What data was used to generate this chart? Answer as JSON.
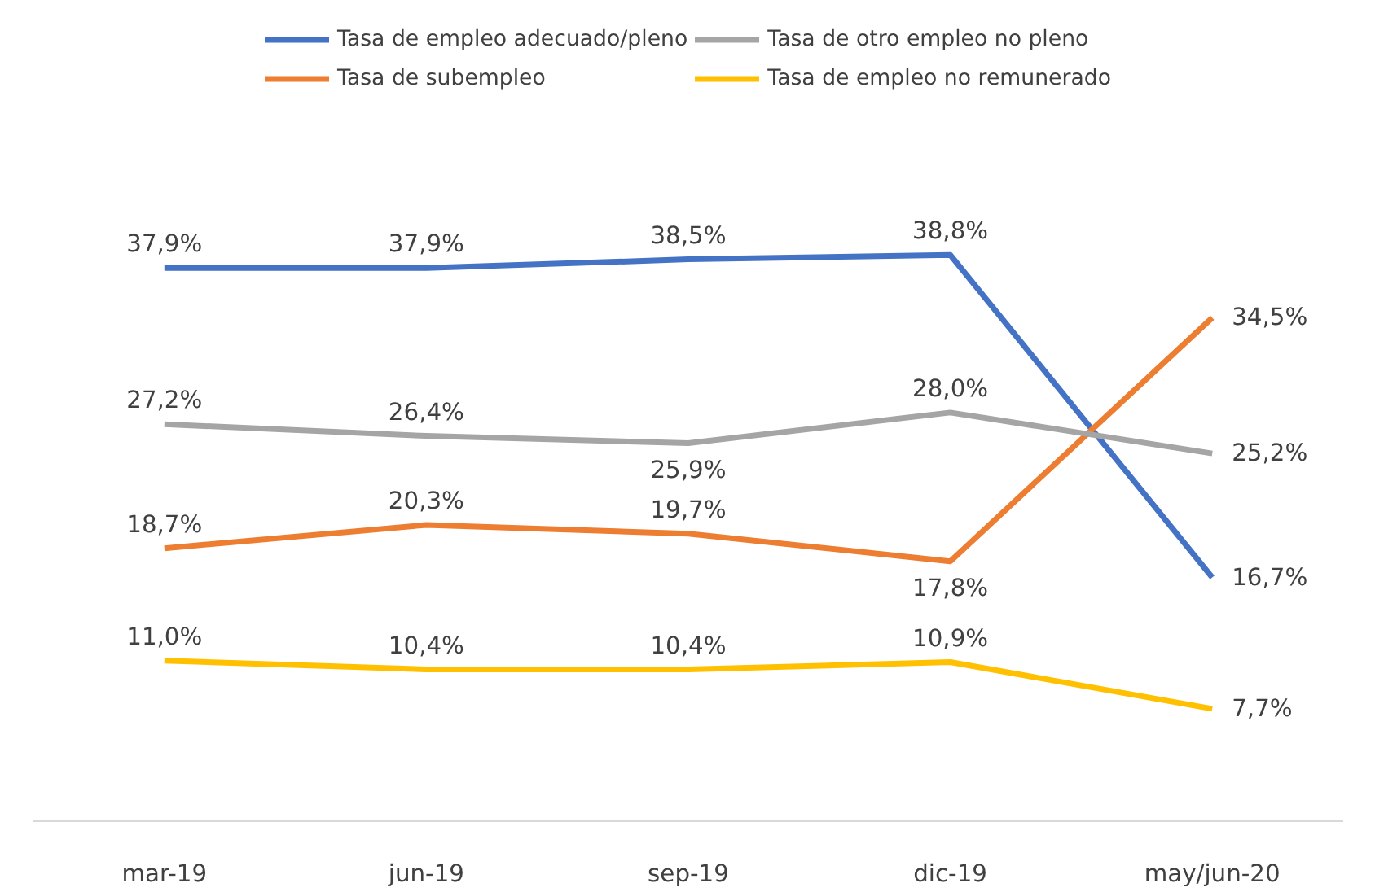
{
  "chart_data": {
    "type": "line",
    "categories": [
      "mar-19",
      "jun-19",
      "sep-19",
      "dic-19",
      "may/jun-20"
    ],
    "series": [
      {
        "name": "Tasa de empleo adecuado/pleno",
        "color": "#4472c4",
        "values": [
          37.9,
          37.9,
          38.5,
          38.8,
          16.7
        ],
        "value_labels": [
          "37,9%",
          "37,9%",
          "38,5%",
          "38,8%",
          "16,7%"
        ]
      },
      {
        "name": "Tasa de subempleo",
        "color": "#ed7d31",
        "values": [
          18.7,
          20.3,
          19.7,
          17.8,
          34.5
        ],
        "value_labels": [
          "18,7%",
          "20,3%",
          "19,7%",
          "17,8%",
          "34,5%"
        ]
      },
      {
        "name": "Tasa de otro empleo no pleno",
        "color": "#a5a5a5",
        "values": [
          27.2,
          26.4,
          25.9,
          28.0,
          25.2
        ],
        "value_labels": [
          "27,2%",
          "26,4%",
          "25,9%",
          "28,0%",
          "25,2%"
        ]
      },
      {
        "name": "Tasa de empleo no remunerado",
        "color": "#ffc000",
        "values": [
          11.0,
          10.4,
          10.4,
          10.9,
          7.7
        ],
        "value_labels": [
          "11,0%",
          "10,4%",
          "10,4%",
          "10,9%",
          "7,7%"
        ]
      }
    ],
    "legend": "top",
    "marker": "none",
    "line_style": "solid"
  }
}
